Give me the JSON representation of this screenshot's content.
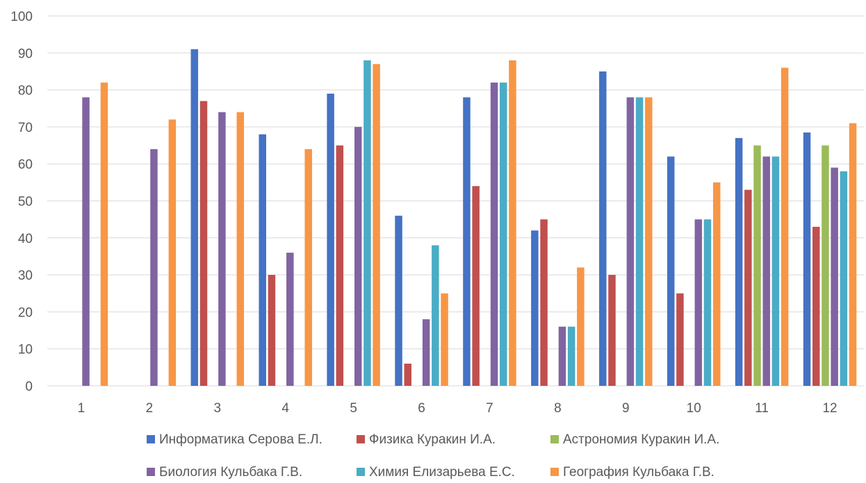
{
  "chart_data": {
    "type": "bar",
    "title": "",
    "xlabel": "",
    "ylabel": "",
    "categories": [
      "1",
      "2",
      "3",
      "4",
      "5",
      "6",
      "7",
      "8",
      "9",
      "10",
      "11",
      "12"
    ],
    "ylim": [
      0,
      100
    ],
    "yticks": [
      "0",
      "10",
      "20",
      "30",
      "40",
      "50",
      "60",
      "70",
      "80",
      "90",
      "100"
    ],
    "grid": true,
    "legend_position": "bottom",
    "series": [
      {
        "name": "Информатика Серова Е.Л.",
        "color": "#4472C4",
        "values": [
          null,
          null,
          91,
          68,
          79,
          46,
          78,
          42,
          85,
          62,
          67,
          68.5
        ]
      },
      {
        "name": "Физика  Куракин И.А.",
        "color": "#C0504D",
        "values": [
          null,
          null,
          77,
          30,
          65,
          6,
          54,
          45,
          30,
          25,
          53,
          43
        ]
      },
      {
        "name": "Астрономия Куракин И.А.",
        "color": "#9BBB59",
        "values": [
          null,
          null,
          null,
          null,
          null,
          null,
          null,
          null,
          null,
          null,
          65,
          65
        ]
      },
      {
        "name": "Биология Кульбака Г.В.",
        "color": "#8064A2",
        "values": [
          78,
          64,
          74,
          36,
          70,
          18,
          82,
          16,
          78,
          45,
          62,
          59
        ]
      },
      {
        "name": "Химия Елизарьева Е.С.",
        "color": "#4BACC6",
        "values": [
          null,
          null,
          null,
          null,
          88,
          38,
          82,
          16,
          78,
          45,
          62,
          58
        ]
      },
      {
        "name": "География Кульбака Г.В.",
        "color": "#F79646",
        "values": [
          82,
          72,
          74,
          64,
          87,
          25,
          88,
          32,
          78,
          55,
          86,
          71
        ]
      }
    ]
  }
}
